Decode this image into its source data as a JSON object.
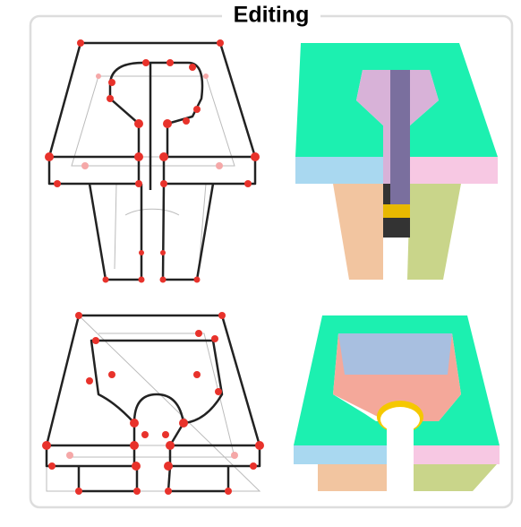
{
  "title": "Editing"
}
